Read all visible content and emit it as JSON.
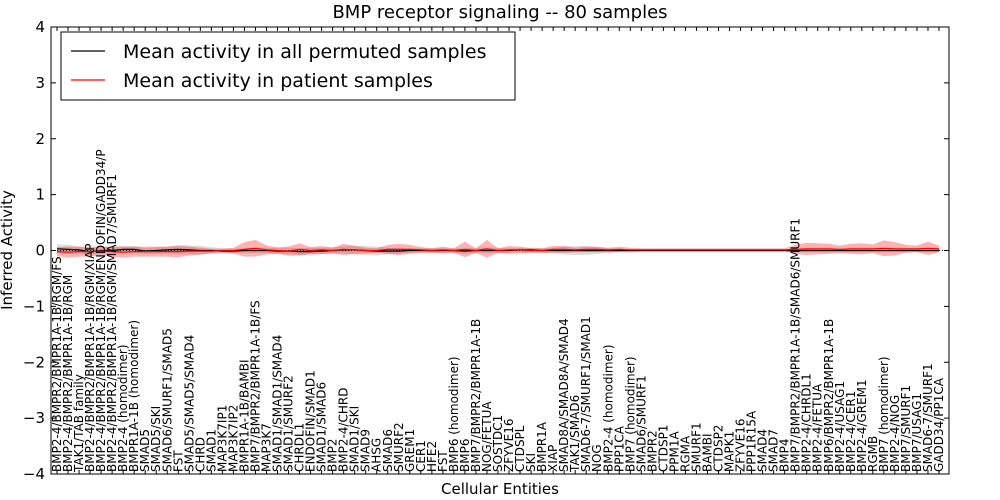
{
  "chart_data": {
    "type": "line",
    "title": "BMP receptor signaling -- 80 samples",
    "xlabel": "Cellular Entities",
    "ylabel": "Inferred Activity",
    "ylim": [
      -4,
      4
    ],
    "yticks": [
      "4",
      "3",
      "2",
      "1",
      "0",
      "−1",
      "−2",
      "−3",
      "−4"
    ],
    "ytick_values": [
      4,
      3,
      2,
      1,
      0,
      -1,
      -2,
      -3,
      -4
    ],
    "legend_position": "top-left",
    "categories": [
      "BMP2-4/BMPR2/BMPR1A-1B/RGM/FS",
      "BMP2-4/BMPR2/BMPR1A-1B/RGM",
      "TAK1/TAB family",
      "BMP2-4/BMPR2/BMPR1A-1B/RGM/XIAP",
      "BMP2-4/BMPR2/BMPR1A-1B/RGM/ENDOFIN/GADD34/P",
      "BMP2-4/BMPR2/BMPR1A-1B/RGM/SMAD7/SMURF1",
      "BMP2-4 (homodimer)",
      "BMPR1A-1B (homodimer)",
      "SMAD5",
      "SMAD5/SKI",
      "SMAD6/SMURF1/SMAD5",
      "FST",
      "SMAD5/SMAD5/SMAD4",
      "CHRD",
      "SMAD1",
      "MAP3K7IP1",
      "MAP3K7IP2",
      "BMPR1A-1B/BAMBI",
      "BMP7/BMPR2/BMPR1A-1B/FS",
      "MAP3K7",
      "SMAD1/SMAD1/SMAD4",
      "SMAD1/SMURF2",
      "CHRDL1",
      "ENDOFIN/SMAD1",
      "SMAD1/SMAD6",
      "BMP2",
      "BMP2-4/CHRD",
      "SMAD1/SKI",
      "SMAD9",
      "AHSG",
      "SMAD6",
      "SMURF2",
      "GREM1",
      "CER1",
      "HFE2",
      "FST",
      "BMP6 (homodimer)",
      "BMP6",
      "BMP7/BMPR2/BMPR1A-1B",
      "NOG/FETUA",
      "SOSTDC1",
      "ZFYVE16",
      "CTDSPL",
      "SKI",
      "BMPR1A",
      "XIAP",
      "SMAD8A/SMAD8A/SMAD4",
      "TAK1/SMAD6",
      "SMAD6-7/SMURF1/SMAD1",
      "NOG",
      "BMP2-4 (homodimer)",
      "PPP1CA",
      "BMP7 (homodimer)",
      "SMAD6/SMURF1",
      "BMPR2",
      "CTDSP1",
      "PPM1A",
      "RGMA",
      "SMURF1",
      "BAMBI",
      "CTDSP2",
      "MAPK1",
      "ZFYVE16",
      "PPP1R15A",
      "SMAD4",
      "SMAD7",
      "BMP4",
      "BMP7/BMPR2/BMPR1A-1B/SMAD6/SMURF1",
      "BMP2-4/CHRDL1",
      "BMP2-4/FETUA",
      "BMP6/BMPR2/BMPR1A-1B",
      "BMP2-4/USAG1",
      "BMP2-4/CER1",
      "BMP2-4/GREM1",
      "RGMB",
      "BMP7 (homodimer)",
      "BMP2-4/NOG",
      "BMP7/SMURF1",
      "BMP7/USAG1",
      "SMAD6-7/SMURF1",
      "GADD34/PP1CA"
    ],
    "series": [
      {
        "name": "Mean activity in all permuted samples",
        "color": "#000000",
        "values": [
          0.03,
          0.02,
          0.01,
          -0.02,
          0.0,
          0.0,
          0.02,
          0.02,
          -0.01,
          0.0,
          0.01,
          0.02,
          0.01,
          0.0,
          0.0,
          -0.01,
          -0.01,
          0.0,
          0.0,
          0.0,
          -0.01,
          -0.01,
          -0.02,
          -0.02,
          -0.01,
          0.0,
          0.01,
          0.01,
          0.0,
          -0.01,
          -0.01,
          -0.01,
          0.0,
          0.0,
          0.0,
          0.0,
          0.0,
          -0.01,
          0.0,
          0.0,
          0.0,
          0.0,
          0.01,
          0.01,
          0.0,
          0.0,
          0.0,
          0.0,
          0.0,
          0.0,
          0.0,
          0.0,
          0.0,
          0.0,
          0.0,
          0.0,
          0.0,
          0.0,
          0.0,
          0.0,
          0.0,
          0.0,
          0.0,
          0.0,
          0.0,
          0.0,
          0.0,
          0.0,
          0.0,
          0.0,
          0.0,
          0.0,
          0.0,
          0.0,
          0.0,
          0.0,
          0.0,
          0.0,
          0.0,
          0.0,
          0.0
        ],
        "band": [
          0.08,
          0.08,
          0.06,
          0.06,
          0.06,
          0.06,
          0.06,
          0.06,
          0.05,
          0.06,
          0.06,
          0.08,
          0.08,
          0.08,
          0.06,
          0.05,
          0.04,
          0.04,
          0.05,
          0.05,
          0.05,
          0.06,
          0.06,
          0.07,
          0.06,
          0.06,
          0.06,
          0.08,
          0.08,
          0.08,
          0.06,
          0.05,
          0.04,
          0.04,
          0.04,
          0.04,
          0.04,
          0.05,
          0.05,
          0.05,
          0.05,
          0.04,
          0.04,
          0.04,
          0.04,
          0.05,
          0.07,
          0.08,
          0.08,
          0.06,
          0.04,
          0.03,
          0.02,
          0.02,
          0.02,
          0.02,
          0.02,
          0.02,
          0.02,
          0.02,
          0.02,
          0.02,
          0.02,
          0.02,
          0.02,
          0.02,
          0.02,
          0.03,
          0.03,
          0.03,
          0.03,
          0.03,
          0.03,
          0.03,
          0.03,
          0.03,
          0.03,
          0.03,
          0.03,
          0.03,
          0.03
        ]
      },
      {
        "name": "Mean activity in patient samples",
        "color": "#ff0000",
        "values": [
          -0.02,
          -0.03,
          -0.02,
          -0.02,
          -0.01,
          -0.02,
          -0.03,
          -0.02,
          -0.02,
          -0.02,
          -0.02,
          -0.02,
          -0.01,
          -0.01,
          -0.01,
          0.0,
          0.0,
          0.02,
          0.04,
          0.01,
          0.0,
          -0.01,
          0.02,
          0.0,
          0.01,
          0.0,
          0.02,
          0.01,
          0.0,
          0.0,
          0.02,
          0.02,
          0.02,
          0.01,
          0.0,
          0.01,
          0.0,
          0.02,
          0.0,
          0.03,
          0.0,
          0.01,
          0.01,
          0.0,
          0.0,
          0.02,
          0.02,
          0.01,
          0.02,
          0.02,
          0.01,
          0.02,
          0.01,
          0.01,
          0.01,
          0.01,
          0.01,
          0.01,
          0.01,
          0.01,
          0.01,
          0.01,
          0.01,
          0.01,
          0.01,
          0.01,
          0.01,
          0.02,
          0.03,
          0.03,
          0.03,
          0.02,
          0.03,
          0.03,
          0.03,
          0.04,
          0.03,
          0.03,
          0.03,
          0.04,
          0.03
        ],
        "band": [
          0.08,
          0.1,
          0.09,
          0.09,
          0.08,
          0.09,
          0.1,
          0.09,
          0.09,
          0.09,
          0.09,
          0.1,
          0.08,
          0.06,
          0.04,
          0.03,
          0.05,
          0.13,
          0.15,
          0.08,
          0.06,
          0.08,
          0.11,
          0.06,
          0.07,
          0.05,
          0.1,
          0.07,
          0.05,
          0.04,
          0.08,
          0.1,
          0.08,
          0.05,
          0.04,
          0.06,
          0.04,
          0.14,
          0.04,
          0.16,
          0.04,
          0.07,
          0.06,
          0.04,
          0.04,
          0.06,
          0.06,
          0.04,
          0.05,
          0.05,
          0.04,
          0.05,
          0.04,
          0.03,
          0.03,
          0.03,
          0.03,
          0.03,
          0.03,
          0.03,
          0.03,
          0.03,
          0.03,
          0.03,
          0.03,
          0.03,
          0.03,
          0.08,
          0.11,
          0.1,
          0.09,
          0.07,
          0.09,
          0.1,
          0.08,
          0.14,
          0.12,
          0.07,
          0.06,
          0.12,
          0.06
        ]
      }
    ]
  }
}
